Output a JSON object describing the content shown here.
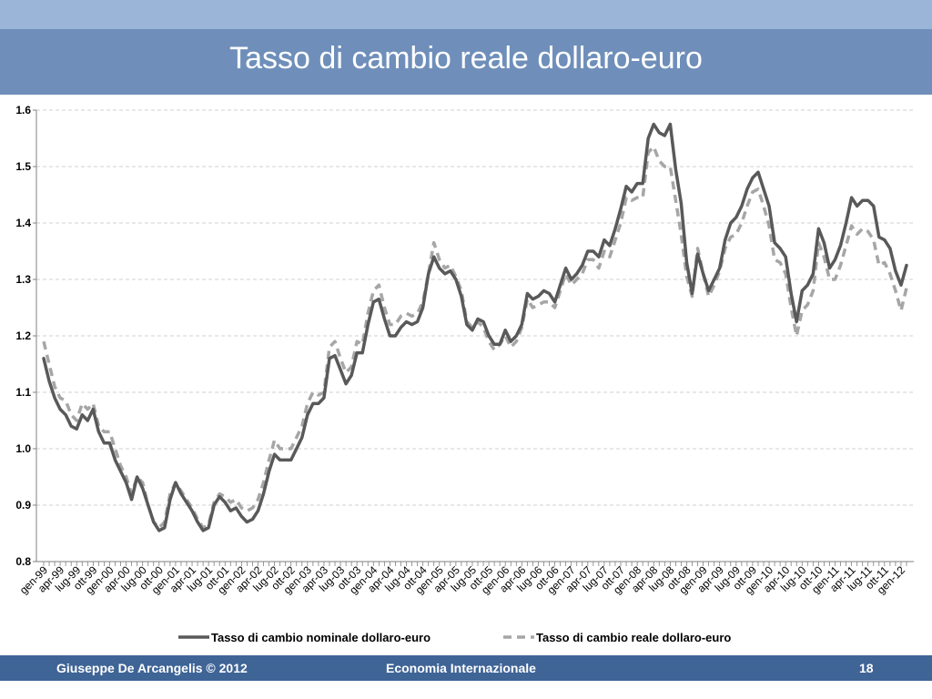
{
  "slide": {
    "title": "Tasso di cambio reale dollaro-euro",
    "footer_left": "Giuseppe De  Arcangelis © 2012",
    "footer_center": "Economia Internazionale",
    "footer_page": "18"
  },
  "colors": {
    "title_bar": "#6f8fba",
    "top_band": "#9bb5d9",
    "footer_bar": "#3f6496",
    "nominal": "#595959",
    "real": "#a6a6a6"
  },
  "chart_data": {
    "type": "line",
    "title": "",
    "xlabel": "",
    "ylabel": "",
    "ylim": [
      0.8,
      1.6
    ],
    "yticks": [
      "0.8",
      "0.9",
      "1.0",
      "1.1",
      "1.2",
      "1.3",
      "1.4",
      "1.5",
      "1.6"
    ],
    "grid": "horizontal dashed",
    "legend_position": "bottom",
    "x_tick_labels": [
      "gen-99",
      "apr-99",
      "lug-99",
      "ott-99",
      "gen-00",
      "apr-00",
      "lug-00",
      "ott-00",
      "gen-01",
      "apr-01",
      "lug-01",
      "ott-01",
      "gen-02",
      "apr-02",
      "lug-02",
      "ott-02",
      "gen-03",
      "apr-03",
      "lug-03",
      "ott-03",
      "gen-04",
      "apr-04",
      "lug-04",
      "ott-04",
      "gen-05",
      "apr-05",
      "lug-05",
      "ott-05",
      "gen-06",
      "apr-06",
      "lug-06",
      "ott-06",
      "gen-07",
      "apr-07",
      "lug-07",
      "ott-07",
      "gen-08",
      "apr-08",
      "lug-08",
      "ott-08",
      "gen-09",
      "apr-09",
      "lug-09",
      "ott-09",
      "gen-10",
      "apr-10",
      "lug-10",
      "ott-10",
      "gen-11",
      "apr-11",
      "lug-11",
      "ott-11",
      "gen-12"
    ],
    "series": [
      {
        "name": "Tasso di cambio nominale dollaro-euro",
        "style": "solid",
        "values": [
          1.16,
          1.12,
          1.09,
          1.07,
          1.06,
          1.04,
          1.035,
          1.06,
          1.05,
          1.07,
          1.03,
          1.01,
          1.01,
          0.98,
          0.96,
          0.94,
          0.91,
          0.95,
          0.93,
          0.9,
          0.87,
          0.855,
          0.86,
          0.91,
          0.94,
          0.92,
          0.905,
          0.89,
          0.87,
          0.855,
          0.86,
          0.9,
          0.915,
          0.905,
          0.89,
          0.895,
          0.88,
          0.87,
          0.875,
          0.89,
          0.92,
          0.96,
          0.99,
          0.98,
          0.98,
          0.98,
          1.0,
          1.02,
          1.06,
          1.08,
          1.08,
          1.09,
          1.16,
          1.165,
          1.14,
          1.115,
          1.13,
          1.17,
          1.17,
          1.22,
          1.26,
          1.265,
          1.23,
          1.2,
          1.2,
          1.215,
          1.225,
          1.22,
          1.225,
          1.25,
          1.31,
          1.34,
          1.32,
          1.31,
          1.315,
          1.3,
          1.27,
          1.22,
          1.21,
          1.23,
          1.225,
          1.2,
          1.185,
          1.185,
          1.21,
          1.19,
          1.2,
          1.22,
          1.275,
          1.265,
          1.27,
          1.28,
          1.275,
          1.26,
          1.29,
          1.32,
          1.3,
          1.31,
          1.325,
          1.35,
          1.35,
          1.34,
          1.37,
          1.36,
          1.39,
          1.425,
          1.465,
          1.455,
          1.47,
          1.47,
          1.55,
          1.575,
          1.56,
          1.555,
          1.575,
          1.495,
          1.435,
          1.33,
          1.275,
          1.345,
          1.31,
          1.28,
          1.3,
          1.32,
          1.37,
          1.4,
          1.41,
          1.43,
          1.46,
          1.48,
          1.49,
          1.46,
          1.43,
          1.365,
          1.355,
          1.34,
          1.275,
          1.225,
          1.28,
          1.29,
          1.31,
          1.39,
          1.365,
          1.32,
          1.335,
          1.36,
          1.4,
          1.445,
          1.43,
          1.44,
          1.44,
          1.43,
          1.375,
          1.37,
          1.355,
          1.315,
          1.29,
          1.325
        ]
      },
      {
        "name": "Tasso di cambio reale dollaro-euro",
        "style": "dashed",
        "values": [
          1.19,
          1.15,
          1.11,
          1.09,
          1.085,
          1.06,
          1.05,
          1.08,
          1.07,
          1.08,
          1.04,
          1.03,
          1.03,
          1.0,
          0.97,
          0.95,
          0.92,
          0.95,
          0.94,
          0.9,
          0.87,
          0.86,
          0.87,
          0.92,
          0.94,
          0.925,
          0.91,
          0.895,
          0.875,
          0.86,
          0.865,
          0.905,
          0.92,
          0.915,
          0.905,
          0.91,
          0.895,
          0.89,
          0.895,
          0.91,
          0.94,
          0.98,
          1.015,
          1.0,
          1.0,
          1.0,
          1.02,
          1.04,
          1.08,
          1.1,
          1.095,
          1.1,
          1.18,
          1.19,
          1.16,
          1.135,
          1.145,
          1.19,
          1.185,
          1.24,
          1.28,
          1.29,
          1.25,
          1.22,
          1.22,
          1.235,
          1.24,
          1.235,
          1.24,
          1.26,
          1.31,
          1.365,
          1.335,
          1.32,
          1.325,
          1.305,
          1.28,
          1.225,
          1.215,
          1.225,
          1.215,
          1.19,
          1.175,
          1.185,
          1.2,
          1.18,
          1.19,
          1.215,
          1.265,
          1.25,
          1.255,
          1.26,
          1.26,
          1.25,
          1.28,
          1.31,
          1.29,
          1.3,
          1.31,
          1.335,
          1.335,
          1.32,
          1.35,
          1.34,
          1.37,
          1.4,
          1.445,
          1.44,
          1.445,
          1.445,
          1.525,
          1.535,
          1.51,
          1.5,
          1.5,
          1.44,
          1.38,
          1.305,
          1.27,
          1.355,
          1.31,
          1.27,
          1.29,
          1.315,
          1.355,
          1.375,
          1.38,
          1.4,
          1.43,
          1.455,
          1.46,
          1.43,
          1.395,
          1.335,
          1.33,
          1.31,
          1.25,
          1.2,
          1.245,
          1.255,
          1.28,
          1.365,
          1.34,
          1.3,
          1.3,
          1.325,
          1.36,
          1.395,
          1.38,
          1.39,
          1.385,
          1.37,
          1.325,
          1.33,
          1.31,
          1.28,
          1.245,
          1.285
        ]
      }
    ]
  }
}
